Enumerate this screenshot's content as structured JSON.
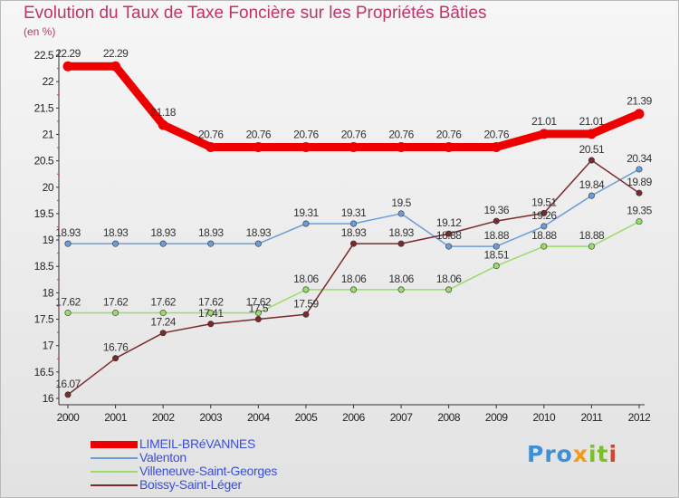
{
  "chart_data": {
    "type": "line",
    "title": "Evolution du Taux de Taxe Foncière sur les Propriétés Bâties",
    "ylabel": "(en %)",
    "xlabel": "",
    "x": [
      "2000",
      "2001",
      "2002",
      "2003",
      "2004",
      "2005",
      "2006",
      "2007",
      "2008",
      "2009",
      "2010",
      "2011",
      "2012"
    ],
    "ylim": [
      16,
      22.5
    ],
    "yticks": [
      "16",
      "16.5",
      "17",
      "17.5",
      "18",
      "18.5",
      "19",
      "19.5",
      "20",
      "20.5",
      "21",
      "21.5",
      "22",
      "22.5"
    ],
    "grid": false,
    "legend_position": "bottom-left",
    "series": [
      {
        "name": "LIMEIL-BRéVANNES",
        "color": "#ee0000",
        "values": [
          22.29,
          22.29,
          21.18,
          20.76,
          20.76,
          20.76,
          20.76,
          20.76,
          20.76,
          20.76,
          21.01,
          21.01,
          21.39
        ],
        "labels": [
          "22.29",
          "22.29",
          "21.18",
          "20.76",
          "20.76",
          "20.76",
          "20.76",
          "20.76",
          "20.76",
          "20.76",
          "21.01",
          "21.01",
          "21.39"
        ]
      },
      {
        "name": "Valenton",
        "color": "#6a9ed8",
        "values": [
          18.93,
          18.93,
          18.93,
          18.93,
          18.93,
          19.31,
          19.31,
          19.5,
          18.88,
          18.88,
          19.26,
          19.84,
          20.34
        ],
        "labels": [
          "18.93",
          "18.93",
          "18.93",
          "18.93",
          "18.93",
          "19.31",
          "19.31",
          "19.5",
          "18.88",
          "18.88",
          "19.26",
          "19.84",
          "20.34"
        ]
      },
      {
        "name": "Villeneuve-Saint-Georges",
        "color": "#99dd66",
        "values": [
          17.62,
          17.62,
          17.62,
          17.62,
          17.62,
          18.06,
          18.06,
          18.06,
          18.06,
          18.51,
          18.88,
          18.88,
          19.35
        ],
        "labels": [
          "17.62",
          "17.62",
          "17.62",
          "17.62",
          "17.62",
          "18.06",
          "18.06",
          "18.06",
          "18.06",
          "18.51",
          "18.88",
          "18.88",
          "19.35"
        ]
      },
      {
        "name": "Boissy-Saint-Léger",
        "color": "#7a2a2a",
        "values": [
          16.07,
          16.76,
          17.24,
          17.41,
          17.5,
          17.59,
          18.93,
          18.93,
          19.12,
          19.36,
          19.51,
          20.51,
          19.89
        ],
        "labels": [
          "16.07",
          "16.76",
          "17.24",
          "17.41",
          "17.5",
          "17.59",
          "18.93",
          "18.93",
          "19.12",
          "19.36",
          "19.51",
          "20.51",
          "19.89"
        ]
      }
    ]
  },
  "logo": {
    "part1": "Pro",
    "part2": "x",
    "part3": "it",
    "part4": "i"
  }
}
